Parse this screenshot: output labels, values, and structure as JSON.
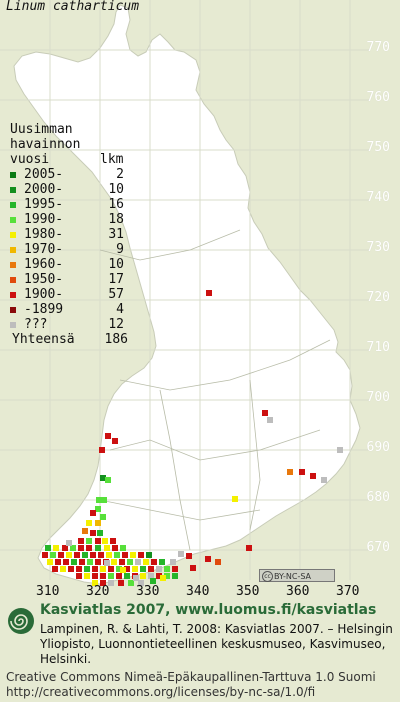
{
  "title": "Linum catharticum",
  "legend": {
    "heading": [
      "Uusimman",
      "havainnon"
    ],
    "col_year": "vuosi",
    "col_count": "lkm",
    "entries": [
      {
        "label": "2005-",
        "count": "2",
        "color": "#0b7a14"
      },
      {
        "label": "2000-",
        "count": "10",
        "color": "#138f1e"
      },
      {
        "label": "1995-",
        "count": "16",
        "color": "#25b52a"
      },
      {
        "label": "1990-",
        "count": "18",
        "color": "#57e03a"
      },
      {
        "label": "1980-",
        "count": "31",
        "color": "#f4f000"
      },
      {
        "label": "1970-",
        "count": "9",
        "color": "#f0b800"
      },
      {
        "label": "1960-",
        "count": "10",
        "color": "#e8780c"
      },
      {
        "label": "1950-",
        "count": "17",
        "color": "#e04a0c"
      },
      {
        "label": "1900-",
        "count": "57",
        "color": "#cc1010"
      },
      {
        "label": "-1899",
        "count": "4",
        "color": "#8a0a0a"
      },
      {
        "label": "???",
        "count": "12",
        "color": "#bdbdbd"
      }
    ],
    "total_label": "Yhteensä",
    "total_count": "186"
  },
  "grid": {
    "y_labels": [
      "770",
      "760",
      "750",
      "740",
      "730",
      "720",
      "710",
      "700",
      "690",
      "680",
      "670"
    ],
    "x_labels": [
      "310",
      "320",
      "330",
      "340",
      "350",
      "360",
      "370"
    ]
  },
  "license_badge": "BY-NC-SA",
  "footer": {
    "title": "Kasviatlas 2007, www.luomus.fi/kasviatlas",
    "citation": "Lampinen, R. & Lahti, T. 2008: Kasviatlas 2007. – Helsingin Yliopisto, Luonnontieteellinen keskusmuseo, Kasvimuseo, Helsinki.",
    "license": "Creative Commons Nimeä-Epäkaupallinen-Tarttuva 1.0 Suomi http://creativecommons.org/licenses/by-nc-sa/1.0/fi"
  }
}
